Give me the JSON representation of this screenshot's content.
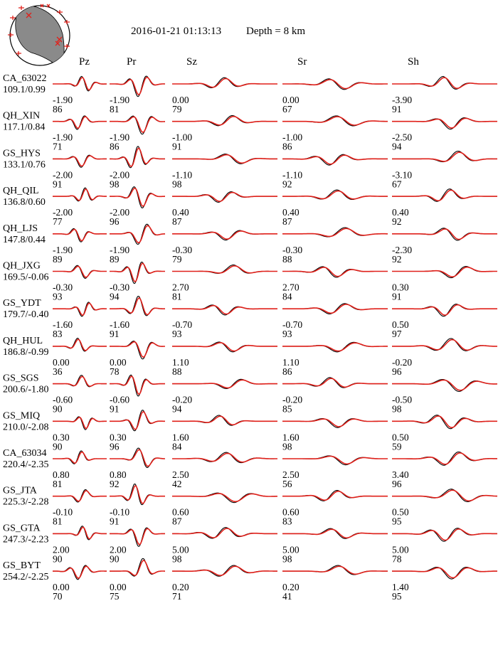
{
  "header": {
    "datetime": "2016-01-21 01:13:13",
    "depth": "Depth = 8 km"
  },
  "columns": [
    "Pz",
    "Pr",
    "Sz",
    "Sr",
    "Sh"
  ],
  "colors": {
    "observed": "#000000",
    "synthetic": "#e0201a",
    "beachball_shade": "#8a8a8a"
  },
  "chart_data": {
    "type": "line",
    "title": "",
    "series_types": [
      "observed",
      "synthetic"
    ],
    "stations": [
      {
        "name": "CA_63022",
        "dist_az": "109.1/0.99",
        "values": [
          [
            "-1.90",
            "86"
          ],
          [
            "-1.90",
            "81"
          ],
          [
            "0.00",
            "79"
          ],
          [
            "0.00",
            "67"
          ],
          [
            "-3.90",
            "91"
          ]
        ]
      },
      {
        "name": "QH_XIN",
        "dist_az": "117.1/0.84",
        "values": [
          [
            "-1.90",
            "71"
          ],
          [
            "-1.90",
            "86"
          ],
          [
            "-1.00",
            "91"
          ],
          [
            "-1.00",
            "86"
          ],
          [
            "-2.50",
            "94"
          ]
        ]
      },
      {
        "name": "GS_HYS",
        "dist_az": "133.1/0.76",
        "values": [
          [
            "-2.00",
            "91"
          ],
          [
            "-2.00",
            "98"
          ],
          [
            "-1.10",
            "98"
          ],
          [
            "-1.10",
            "92"
          ],
          [
            "-3.10",
            "67"
          ]
        ]
      },
      {
        "name": "QH_QIL",
        "dist_az": "136.8/0.60",
        "values": [
          [
            "-2.00",
            "77"
          ],
          [
            "-2.00",
            "96"
          ],
          [
            "0.40",
            "87"
          ],
          [
            "0.40",
            "87"
          ],
          [
            "0.40",
            "92"
          ]
        ]
      },
      {
        "name": "QH_LJS",
        "dist_az": "147.8/0.44",
        "values": [
          [
            "-1.90",
            "89"
          ],
          [
            "-1.90",
            "89"
          ],
          [
            "-0.30",
            "79"
          ],
          [
            "-0.30",
            "88"
          ],
          [
            "-2.30",
            "92"
          ]
        ]
      },
      {
        "name": "QH_JXG",
        "dist_az": "169.5/-0.06",
        "values": [
          [
            "-0.30",
            "93"
          ],
          [
            "-0.30",
            "94"
          ],
          [
            "2.70",
            "81"
          ],
          [
            "2.70",
            "84"
          ],
          [
            "0.30",
            "91"
          ]
        ]
      },
      {
        "name": "GS_YDT",
        "dist_az": "179.7/-0.40",
        "values": [
          [
            "-1.60",
            "83"
          ],
          [
            "-1.60",
            "91"
          ],
          [
            "-0.70",
            "93"
          ],
          [
            "-0.70",
            "93"
          ],
          [
            "0.50",
            "97"
          ]
        ]
      },
      {
        "name": "QH_HUL",
        "dist_az": "186.8/-0.99",
        "values": [
          [
            "0.00",
            "36"
          ],
          [
            "0.00",
            "78"
          ],
          [
            "1.10",
            "88"
          ],
          [
            "1.10",
            "86"
          ],
          [
            "-0.20",
            "96"
          ]
        ]
      },
      {
        "name": "GS_SGS",
        "dist_az": "200.6/-1.80",
        "values": [
          [
            "-0.60",
            "90"
          ],
          [
            "-0.60",
            "91"
          ],
          [
            "-0.20",
            "94"
          ],
          [
            "-0.20",
            "85"
          ],
          [
            "-0.50",
            "98"
          ]
        ]
      },
      {
        "name": "GS_MIQ",
        "dist_az": "210.0/-2.08",
        "values": [
          [
            "0.30",
            "90"
          ],
          [
            "0.30",
            "96"
          ],
          [
            "1.60",
            "84"
          ],
          [
            "1.60",
            "98"
          ],
          [
            "0.50",
            "59"
          ]
        ]
      },
      {
        "name": "CA_63034",
        "dist_az": "220.4/-2.35",
        "values": [
          [
            "0.80",
            "81"
          ],
          [
            "0.80",
            "92"
          ],
          [
            "2.50",
            "42"
          ],
          [
            "2.50",
            "56"
          ],
          [
            "3.40",
            "96"
          ]
        ]
      },
      {
        "name": "GS_JTA",
        "dist_az": "225.3/-2.28",
        "values": [
          [
            "-0.10",
            "81"
          ],
          [
            "-0.10",
            "91"
          ],
          [
            "0.60",
            "87"
          ],
          [
            "0.60",
            "83"
          ],
          [
            "0.50",
            "95"
          ]
        ]
      },
      {
        "name": "GS_GTA",
        "dist_az": "247.3/-2.23",
        "values": [
          [
            "2.00",
            "90"
          ],
          [
            "2.00",
            "90"
          ],
          [
            "5.00",
            "98"
          ],
          [
            "5.00",
            "98"
          ],
          [
            "5.00",
            "78"
          ]
        ]
      },
      {
        "name": "GS_BYT",
        "dist_az": "254.2/-2.25",
        "values": [
          [
            "0.00",
            "70"
          ],
          [
            "0.00",
            "75"
          ],
          [
            "0.20",
            "71"
          ],
          [
            "0.20",
            "41"
          ],
          [
            "1.40",
            "95"
          ]
        ]
      }
    ]
  }
}
